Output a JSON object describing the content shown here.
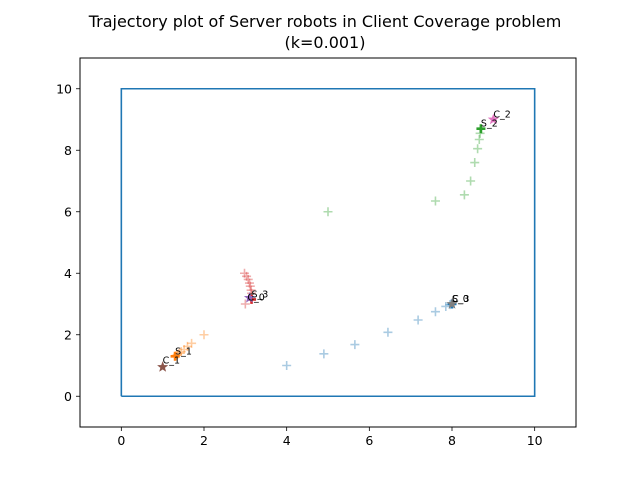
{
  "chart_data": {
    "type": "scatter",
    "title_line1": "Trajectory plot of Server robots in Client Coverage problem",
    "title_line2": "(k=0.001)",
    "xlim": [
      -1,
      11
    ],
    "ylim": [
      -1,
      11
    ],
    "xticks": [
      0,
      2,
      4,
      6,
      8,
      10
    ],
    "yticks": [
      0,
      2,
      4,
      6,
      8,
      10
    ],
    "grid": false,
    "boundary": {
      "x": [
        0,
        0,
        10,
        10,
        0
      ],
      "y": [
        0,
        10,
        10,
        0,
        0
      ],
      "color": "#1f77b4"
    },
    "series": [
      {
        "color": "#1f77b4",
        "trail": [
          [
            4.0,
            1.0
          ],
          [
            4.9,
            1.38
          ],
          [
            5.65,
            1.68
          ],
          [
            6.45,
            2.08
          ],
          [
            7.18,
            2.48
          ],
          [
            7.6,
            2.75
          ],
          [
            7.85,
            2.92
          ],
          [
            7.95,
            2.98
          ]
        ],
        "end": [
          8.0,
          3.0
        ]
      },
      {
        "color": "#ff7f0e",
        "trail": [
          [
            2.0,
            2.0
          ],
          [
            1.7,
            1.72
          ],
          [
            1.6,
            1.62
          ],
          [
            1.52,
            1.52
          ],
          [
            1.45,
            1.45
          ],
          [
            1.4,
            1.4
          ],
          [
            1.36,
            1.36
          ],
          [
            1.33,
            1.33
          ]
        ],
        "end": [
          1.3,
          1.3
        ]
      },
      {
        "color": "#2ca02c",
        "trail": [
          [
            5.0,
            6.0
          ],
          [
            7.6,
            6.35
          ],
          [
            8.3,
            6.55
          ],
          [
            8.45,
            7.0
          ],
          [
            8.55,
            7.6
          ],
          [
            8.62,
            8.05
          ],
          [
            8.66,
            8.35
          ],
          [
            8.68,
            8.55
          ]
        ],
        "end": [
          8.7,
          8.7
        ]
      },
      {
        "color": "#d62728",
        "trail": [
          [
            3.0,
            3.0
          ],
          [
            2.98,
            4.0
          ],
          [
            3.03,
            3.9
          ],
          [
            3.07,
            3.8
          ],
          [
            3.1,
            3.68
          ],
          [
            3.12,
            3.58
          ],
          [
            3.14,
            3.45
          ],
          [
            3.15,
            3.35
          ]
        ],
        "end": [
          3.15,
          3.15
        ]
      }
    ],
    "clients": [
      {
        "point": [
          3.1,
          3.2
        ],
        "color": "#9467bd"
      },
      {
        "point": [
          1.0,
          0.95
        ],
        "color": "#8c564b"
      },
      {
        "point": [
          9.0,
          9.0
        ],
        "color": "#e377c2"
      },
      {
        "point": [
          8.0,
          3.0
        ],
        "color": "#7f7f7f"
      }
    ],
    "annotations": [
      {
        "text": "S_0",
        "x": 8.0,
        "y": 3.0
      },
      {
        "text": "S_1",
        "x": 1.3,
        "y": 1.3
      },
      {
        "text": "S_2",
        "x": 8.7,
        "y": 8.7
      },
      {
        "text": "S_3",
        "x": 3.15,
        "y": 3.15
      },
      {
        "text": "C_0",
        "x": 3.05,
        "y": 3.05
      },
      {
        "text": "C_1",
        "x": 1.0,
        "y": 1.0
      },
      {
        "text": "C_2",
        "x": 9.0,
        "y": 9.0
      },
      {
        "text": "C_3",
        "x": 8.0,
        "y": 3.0
      }
    ]
  }
}
